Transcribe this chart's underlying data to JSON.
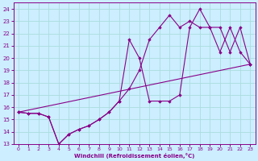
{
  "background_color": "#cceeff",
  "grid_color": "#aadddd",
  "line_color": "#880088",
  "marker_color": "#880088",
  "xlabel": "Windchill (Refroidissement éolien,°C)",
  "xlim": [
    -0.5,
    23.5
  ],
  "ylim": [
    13,
    24.5
  ],
  "yticks": [
    13,
    14,
    15,
    16,
    17,
    18,
    19,
    20,
    21,
    22,
    23,
    24
  ],
  "xticks": [
    0,
    1,
    2,
    3,
    4,
    5,
    6,
    7,
    8,
    9,
    10,
    11,
    12,
    13,
    14,
    15,
    16,
    17,
    18,
    19,
    20,
    21,
    22,
    23
  ],
  "line1_x": [
    0,
    1,
    2,
    3,
    4,
    5,
    6,
    7,
    8,
    9,
    10,
    11,
    12,
    13,
    14,
    15,
    16,
    17,
    18,
    19,
    20,
    21,
    22,
    23
  ],
  "line1_y": [
    15.6,
    15.5,
    15.5,
    15.2,
    13.0,
    13.8,
    14.2,
    14.5,
    15.0,
    15.6,
    16.5,
    21.5,
    20.0,
    16.5,
    16.5,
    16.5,
    17.0,
    22.5,
    24.0,
    22.5,
    20.5,
    22.5,
    20.5,
    19.5
  ],
  "line2_x": [
    0,
    1,
    2,
    3,
    4,
    5,
    6,
    7,
    8,
    9,
    10,
    11,
    12,
    13,
    14,
    15,
    16,
    17,
    18,
    19,
    20,
    21,
    22,
    23
  ],
  "line2_y": [
    15.6,
    15.5,
    15.5,
    15.2,
    13.0,
    13.8,
    14.2,
    14.5,
    15.0,
    15.6,
    16.5,
    17.5,
    19.0,
    21.5,
    22.5,
    23.5,
    22.5,
    23.0,
    22.5,
    22.5,
    22.5,
    20.5,
    22.5,
    19.5
  ],
  "line3_x": [
    0,
    23
  ],
  "line3_y": [
    15.6,
    19.5
  ]
}
